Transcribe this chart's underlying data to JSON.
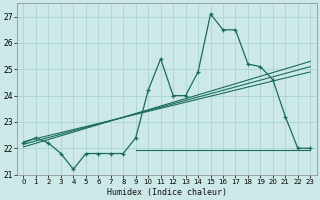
{
  "xlabel": "Humidex (Indice chaleur)",
  "bg_color": "#cce9e8",
  "grid_color": "#aad4d3",
  "line_color": "#1a6b5e",
  "xlim": [
    -0.5,
    23.5
  ],
  "ylim": [
    21.0,
    27.5
  ],
  "yticks": [
    21,
    22,
    23,
    24,
    25,
    26,
    27
  ],
  "xticks": [
    0,
    1,
    2,
    3,
    4,
    5,
    6,
    7,
    8,
    9,
    10,
    11,
    12,
    13,
    14,
    15,
    16,
    17,
    18,
    19,
    20,
    21,
    22,
    23
  ],
  "humidex_x": [
    0,
    1,
    2,
    3,
    4,
    5,
    6,
    7,
    8,
    9,
    10,
    11,
    12,
    13,
    14,
    15,
    16,
    17,
    18,
    19,
    20,
    21,
    22,
    23
  ],
  "humidex_y": [
    22.2,
    22.4,
    22.2,
    21.8,
    21.2,
    21.8,
    21.8,
    21.8,
    21.8,
    22.4,
    24.2,
    25.4,
    24.0,
    24.0,
    24.9,
    27.1,
    26.5,
    26.5,
    25.2,
    25.1,
    24.6,
    23.2,
    22.0,
    22.0
  ],
  "reg_line1_x": [
    0,
    23
  ],
  "reg_line1_y": [
    22.05,
    25.3
  ],
  "reg_line2_x": [
    0,
    23
  ],
  "reg_line2_y": [
    22.15,
    25.1
  ],
  "reg_line3_x": [
    0,
    23
  ],
  "reg_line3_y": [
    22.25,
    24.9
  ],
  "flat_line_x": [
    9,
    23
  ],
  "flat_line_y": [
    21.95,
    21.95
  ]
}
